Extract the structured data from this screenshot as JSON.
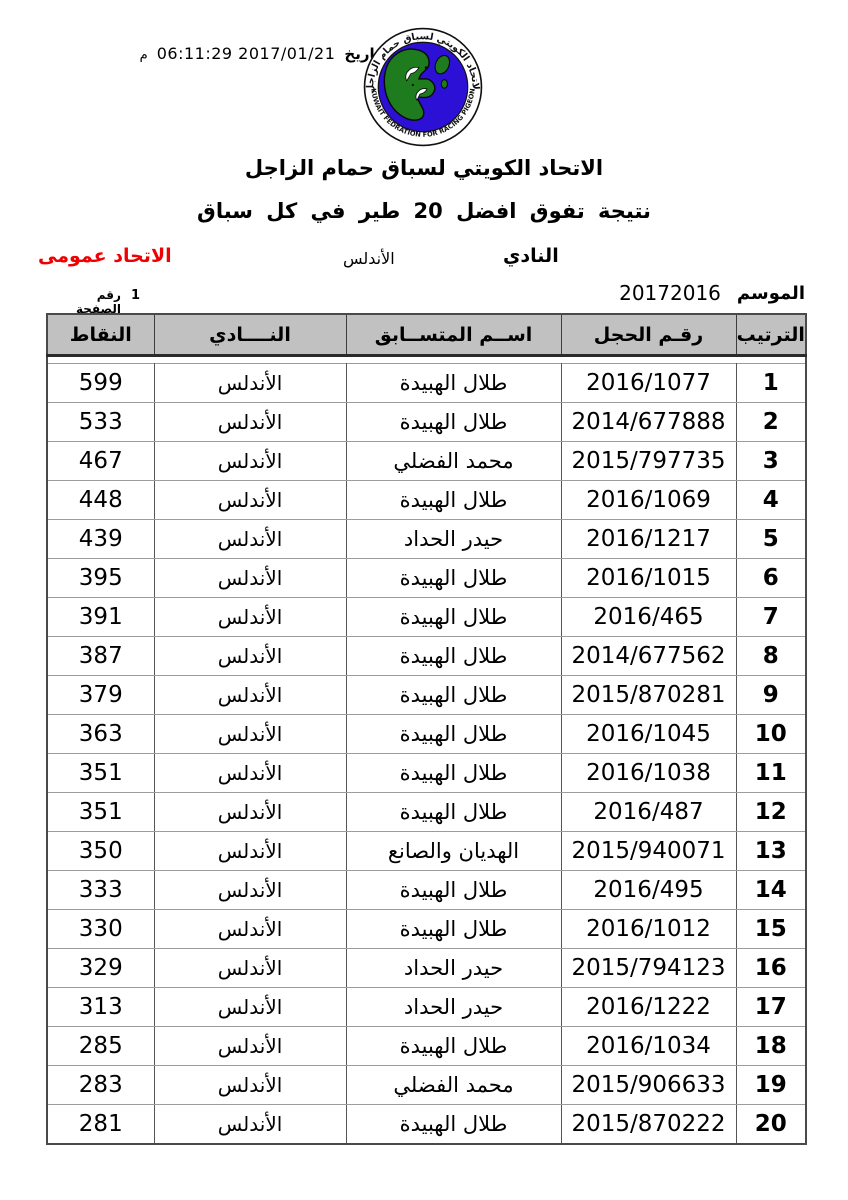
{
  "page": {
    "date": {
      "label": "التاريخ",
      "value": "06:11:29 2017/01/21",
      "suffix": "م"
    },
    "logo": {
      "arc_top": "الاتحاد الكويتي لسباق حمام الزاجل",
      "arc_bottom": "KUWAIT FEDRATION FOR RACING PIGEON",
      "colors": {
        "disc": "#2d10d6",
        "map": "#1e7c1e",
        "ring": "#ffffff"
      }
    },
    "title": "الاتحاد الكويتي لسباق حمام الزاجل",
    "subtitle": "نتيجة تفوق افضل 20 طير في كل سباق",
    "club": {
      "label": "النادي",
      "value": "الأندلس"
    },
    "federation_note": "الاتحاد عمومى",
    "season": {
      "label": "الموسم",
      "value": "20172016"
    },
    "page_number": {
      "label": "رقم الصفحة",
      "value": "1"
    }
  },
  "table": {
    "headers": {
      "rank": "الترتيب",
      "ring": "رقـم الحجل",
      "competitor": "اســم المتســابق",
      "club": "النــــادي",
      "points": "النقاط"
    },
    "rows": [
      {
        "rank": "1",
        "ring": "2016/1077",
        "name": "طلال الهبيدة",
        "club": "الأندلس",
        "points": "599"
      },
      {
        "rank": "2",
        "ring": "2014/677888",
        "name": "طلال الهبيدة",
        "club": "الأندلس",
        "points": "533"
      },
      {
        "rank": "3",
        "ring": "2015/797735",
        "name": "محمد الفضلي",
        "club": "الأندلس",
        "points": "467"
      },
      {
        "rank": "4",
        "ring": "2016/1069",
        "name": "طلال الهبيدة",
        "club": "الأندلس",
        "points": "448"
      },
      {
        "rank": "5",
        "ring": "2016/1217",
        "name": "حيدر الحداد",
        "club": "الأندلس",
        "points": "439"
      },
      {
        "rank": "6",
        "ring": "2016/1015",
        "name": "طلال الهبيدة",
        "club": "الأندلس",
        "points": "395"
      },
      {
        "rank": "7",
        "ring": "2016/465",
        "name": "طلال الهبيدة",
        "club": "الأندلس",
        "points": "391"
      },
      {
        "rank": "8",
        "ring": "2014/677562",
        "name": "طلال الهبيدة",
        "club": "الأندلس",
        "points": "387"
      },
      {
        "rank": "9",
        "ring": "2015/870281",
        "name": "طلال الهبيدة",
        "club": "الأندلس",
        "points": "379"
      },
      {
        "rank": "10",
        "ring": "2016/1045",
        "name": "طلال الهبيدة",
        "club": "الأندلس",
        "points": "363"
      },
      {
        "rank": "11",
        "ring": "2016/1038",
        "name": "طلال الهبيدة",
        "club": "الأندلس",
        "points": "351"
      },
      {
        "rank": "12",
        "ring": "2016/487",
        "name": "طلال الهبيدة",
        "club": "الأندلس",
        "points": "351"
      },
      {
        "rank": "13",
        "ring": "2015/940071",
        "name": "الهديان والصانع",
        "club": "الأندلس",
        "points": "350"
      },
      {
        "rank": "14",
        "ring": "2016/495",
        "name": "طلال الهبيدة",
        "club": "الأندلس",
        "points": "333"
      },
      {
        "rank": "15",
        "ring": "2016/1012",
        "name": "طلال الهبيدة",
        "club": "الأندلس",
        "points": "330"
      },
      {
        "rank": "16",
        "ring": "2015/794123",
        "name": "حيدر الحداد",
        "club": "الأندلس",
        "points": "329"
      },
      {
        "rank": "17",
        "ring": "2016/1222",
        "name": "حيدر الحداد",
        "club": "الأندلس",
        "points": "313"
      },
      {
        "rank": "18",
        "ring": "2016/1034",
        "name": "طلال الهبيدة",
        "club": "الأندلس",
        "points": "285"
      },
      {
        "rank": "19",
        "ring": "2015/906633",
        "name": "محمد الفضلي",
        "club": "الأندلس",
        "points": "283"
      },
      {
        "rank": "20",
        "ring": "2015/870222",
        "name": "طلال الهبيدة",
        "club": "الأندلس",
        "points": "281"
      }
    ]
  }
}
